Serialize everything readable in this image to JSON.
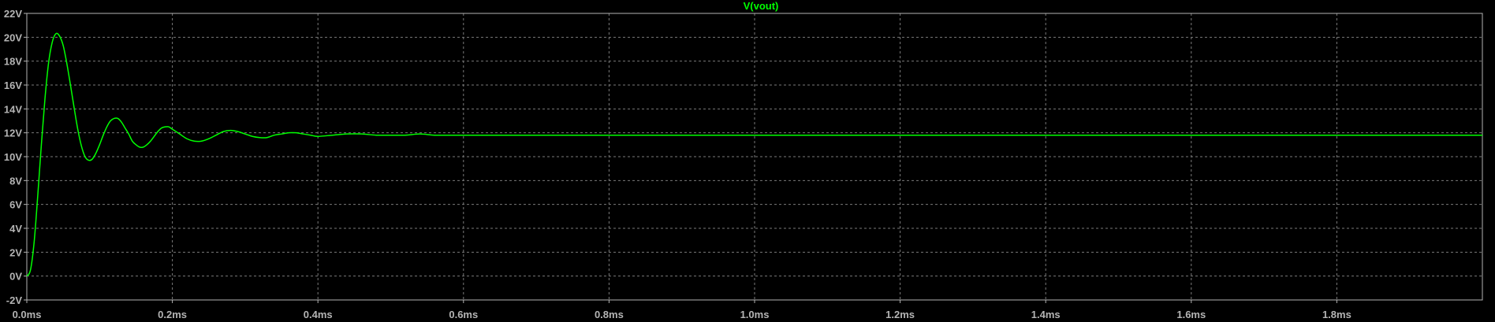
{
  "chart_data": {
    "type": "line",
    "title": "V(vout)",
    "xlabel": "",
    "ylabel": "",
    "xlim": [
      0,
      2.0
    ],
    "ylim": [
      -2,
      22
    ],
    "x_ticks": [
      0,
      0.2,
      0.4,
      0.6,
      0.8,
      1.0,
      1.2,
      1.4,
      1.6,
      1.8
    ],
    "x_tick_labels": [
      "0.0ms",
      "0.2ms",
      "0.4ms",
      "0.6ms",
      "0.8ms",
      "1.0ms",
      "1.2ms",
      "1.4ms",
      "1.6ms",
      "1.8ms"
    ],
    "y_ticks": [
      -2,
      0,
      2,
      4,
      6,
      8,
      10,
      12,
      14,
      16,
      18,
      20,
      22
    ],
    "y_tick_labels": [
      "-2V",
      "0V",
      "2V",
      "4V",
      "6V",
      "8V",
      "10V",
      "12V",
      "14V",
      "16V",
      "18V",
      "20V",
      "22V"
    ],
    "grid": true,
    "colors": {
      "background": "#000000",
      "trace": "#00ff00",
      "axis": "#b4b4b4",
      "grid": "#7a7a7a"
    },
    "series": [
      {
        "name": "V(vout)",
        "x": [
          0,
          0.005,
          0.01,
          0.015,
          0.02,
          0.025,
          0.03,
          0.035,
          0.04,
          0.045,
          0.05,
          0.055,
          0.06,
          0.065,
          0.07,
          0.075,
          0.08,
          0.085,
          0.09,
          0.095,
          0.1,
          0.105,
          0.11,
          0.115,
          0.12,
          0.125,
          0.13,
          0.135,
          0.14,
          0.145,
          0.15,
          0.155,
          0.16,
          0.165,
          0.17,
          0.175,
          0.18,
          0.185,
          0.19,
          0.195,
          0.2,
          0.21,
          0.22,
          0.23,
          0.24,
          0.25,
          0.26,
          0.27,
          0.28,
          0.29,
          0.3,
          0.31,
          0.32,
          0.33,
          0.34,
          0.35,
          0.36,
          0.37,
          0.38,
          0.39,
          0.4,
          0.42,
          0.44,
          0.46,
          0.48,
          0.5,
          0.52,
          0.54,
          0.56,
          0.58,
          0.6,
          0.62,
          0.65,
          0.7,
          0.8,
          1.0,
          1.2,
          1.4,
          1.6,
          1.8,
          2.0
        ],
        "values": [
          0,
          0.5,
          2.8,
          6.7,
          11.0,
          14.9,
          17.9,
          19.6,
          20.3,
          20.1,
          19.3,
          17.8,
          16.0,
          14.1,
          12.3,
          10.9,
          10.0,
          9.7,
          9.8,
          10.3,
          11.0,
          11.8,
          12.5,
          13.0,
          13.2,
          13.2,
          12.9,
          12.4,
          11.9,
          11.3,
          11.0,
          10.8,
          10.8,
          11.0,
          11.3,
          11.7,
          12.1,
          12.4,
          12.5,
          12.5,
          12.3,
          11.9,
          11.5,
          11.3,
          11.3,
          11.5,
          11.8,
          12.1,
          12.2,
          12.1,
          11.9,
          11.7,
          11.6,
          11.6,
          11.8,
          11.9,
          12.0,
          12.0,
          11.9,
          11.8,
          11.7,
          11.8,
          11.9,
          11.9,
          11.8,
          11.8,
          11.8,
          11.9,
          11.8,
          11.8,
          11.8,
          11.8,
          11.8,
          11.8,
          11.8,
          11.8,
          11.8,
          11.8,
          11.8,
          11.8,
          11.8
        ]
      }
    ]
  }
}
